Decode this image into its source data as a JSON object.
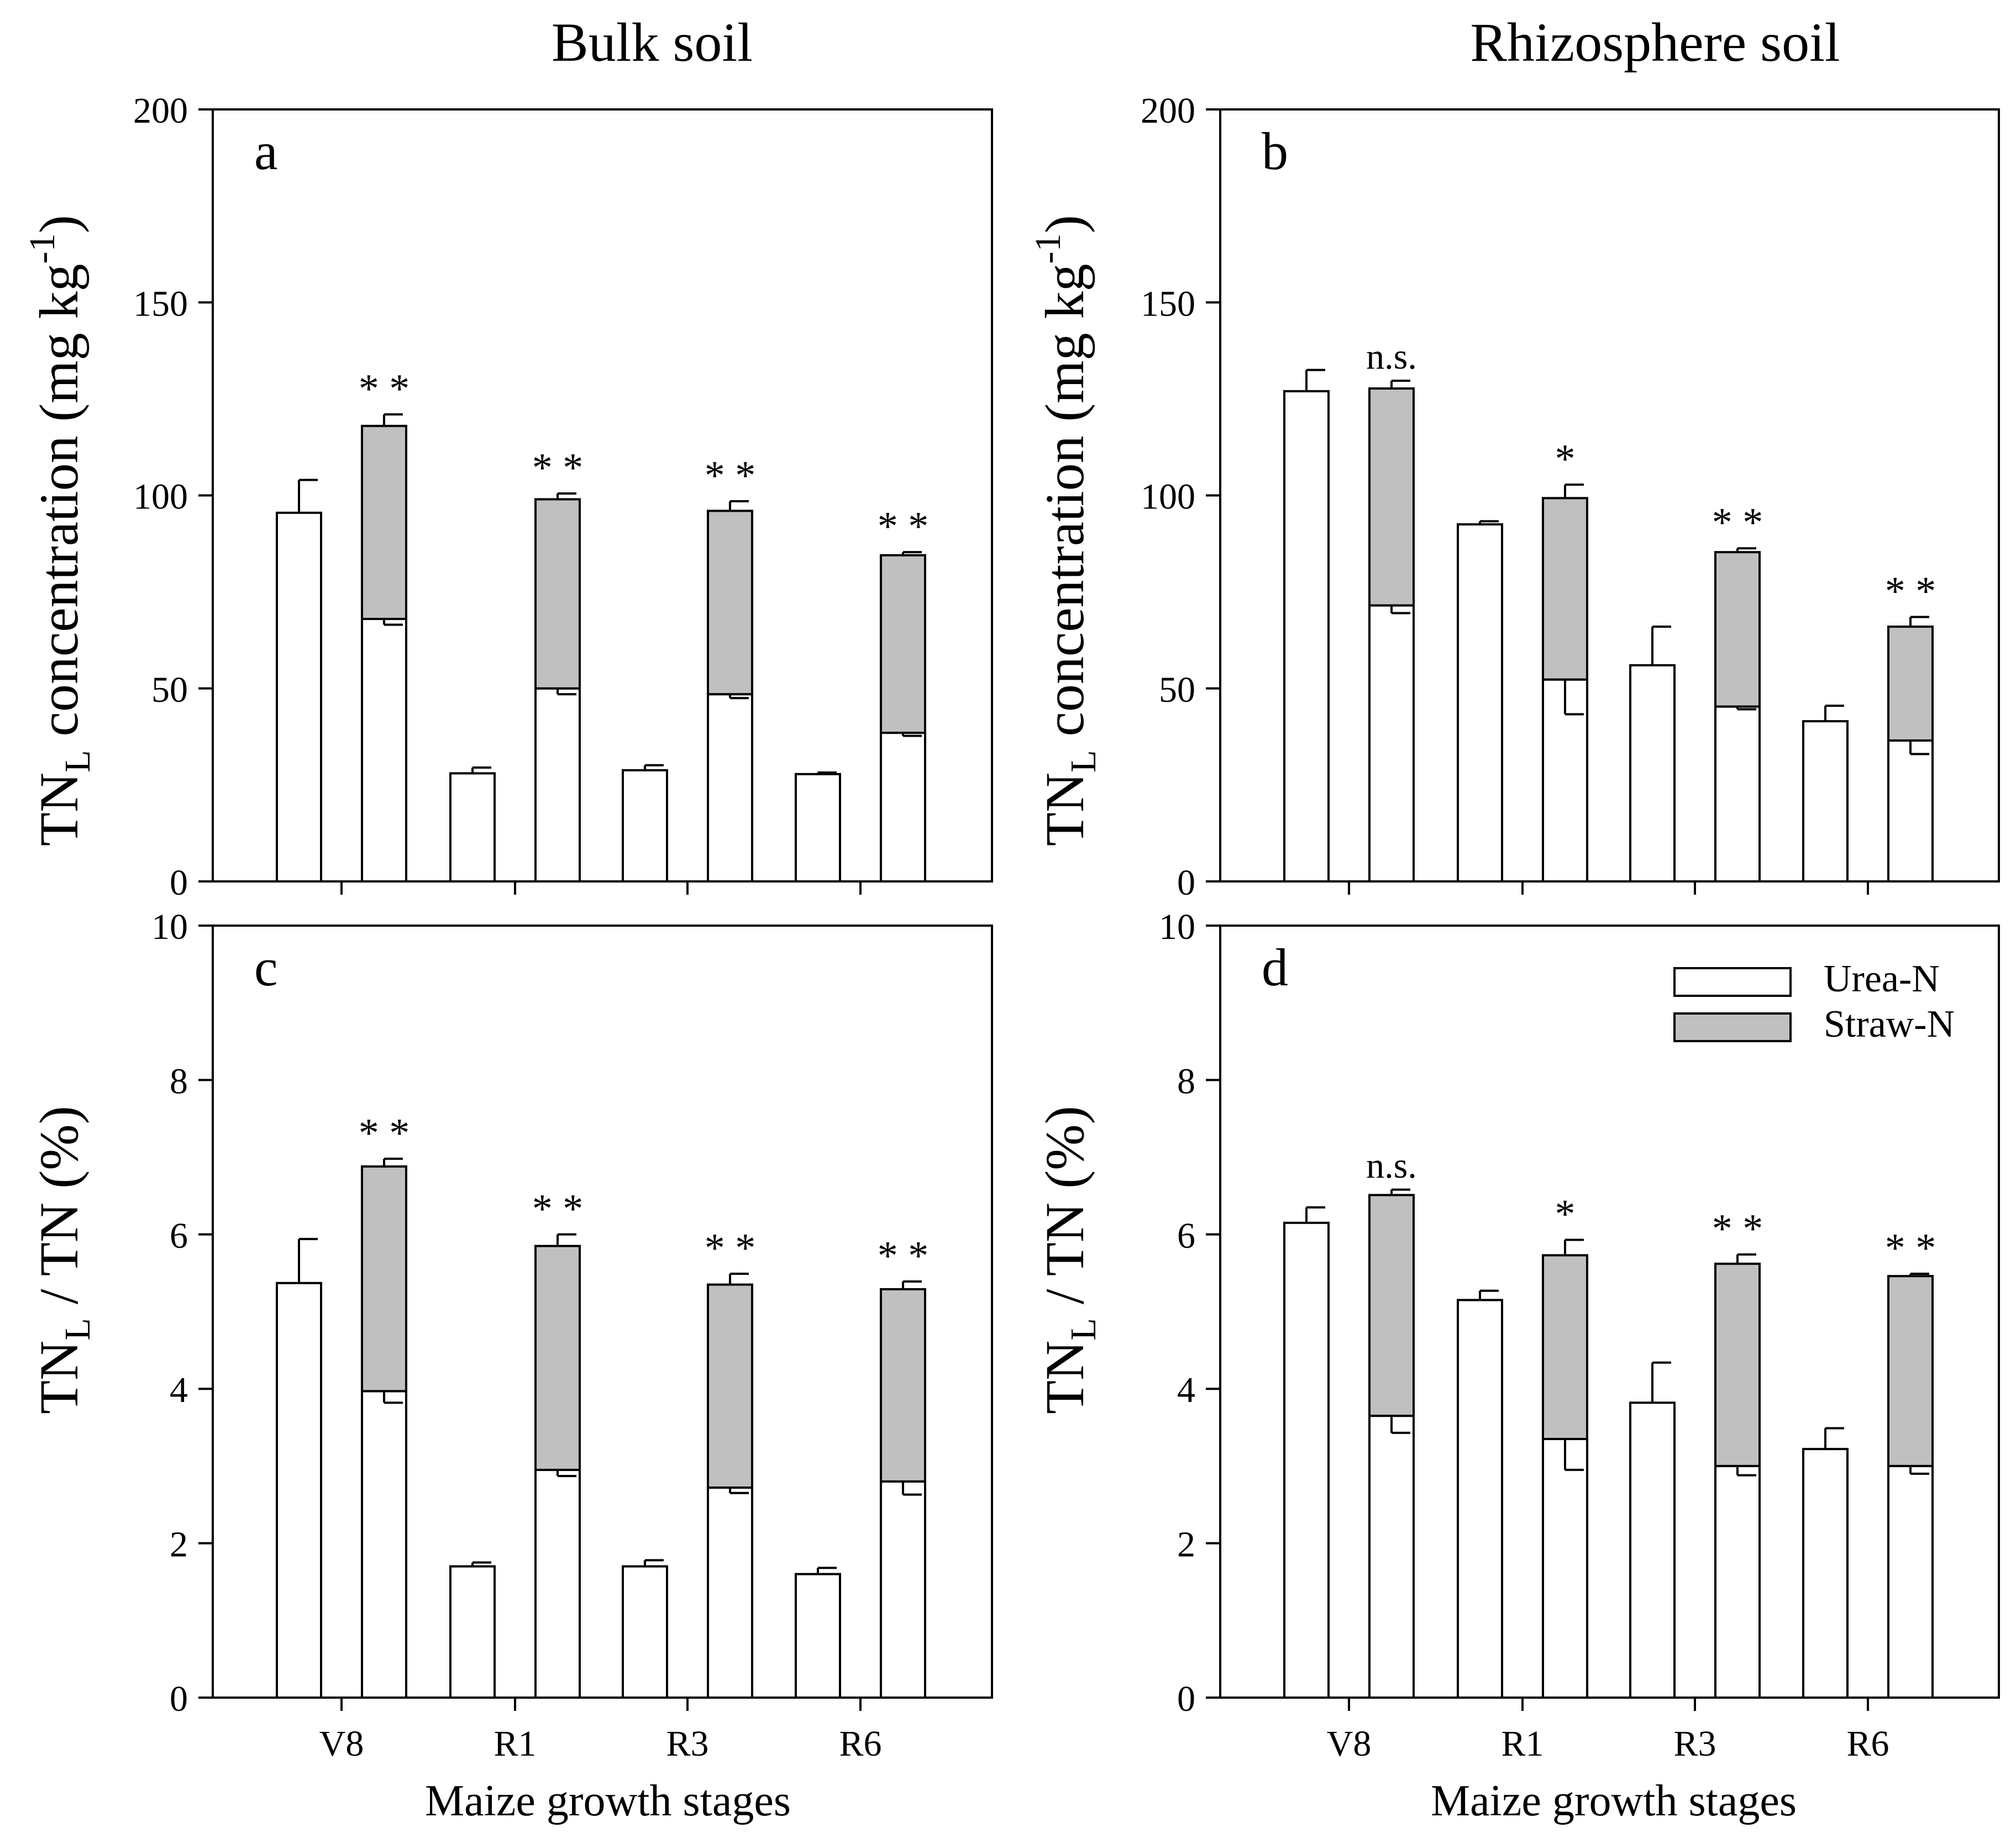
{
  "figure": {
    "col_titles": [
      "Bulk soil",
      "Rhizosphere soil"
    ],
    "xlabel": "Maize growth stages",
    "ylabel_conc": "TN_L concentration (mg kg^-1)",
    "ylabel_ratio": "TN_L / TN (%)",
    "colors": {
      "urea": "#ffffff",
      "straw": "#c0c0c0",
      "stroke": "#000000"
    }
  },
  "legend": {
    "position": "top-right of panel d",
    "entries": [
      {
        "label": "Urea-N",
        "color": "#ffffff"
      },
      {
        "label": "Straw-N",
        "color": "#c0c0c0"
      }
    ]
  },
  "chart_data": [
    {
      "panel": "a",
      "type": "bar",
      "stacked": true,
      "title": "Bulk soil",
      "categories": [
        "V8",
        "R1",
        "R3",
        "R6"
      ],
      "xlabel": "",
      "ylabel": "TN_L concentration (mg kg^-1)",
      "ylim": [
        0,
        200
      ],
      "yticks": [
        0,
        50,
        100,
        150,
        200
      ],
      "urea_only": [
        95.5,
        28,
        28.8,
        27.8
      ],
      "urea_only_err": [
        8.5,
        1.5,
        1.3,
        0.4
      ],
      "combined_urea": [
        68,
        50,
        48.5,
        38.5
      ],
      "combined_urea_err": [
        1.5,
        1.5,
        1,
        0.8
      ],
      "combined_straw": [
        50,
        49,
        47.5,
        46
      ],
      "combined_total_err": [
        3,
        1.5,
        2.5,
        0.8
      ],
      "significance": [
        "**",
        "**",
        "**",
        "**"
      ]
    },
    {
      "panel": "b",
      "type": "bar",
      "stacked": true,
      "title": "Rhizosphere soil",
      "categories": [
        "V8",
        "R1",
        "R3",
        "R6"
      ],
      "xlabel": "",
      "ylabel": "TN_L concentration (mg kg^-1)",
      "ylim": [
        0,
        200
      ],
      "yticks": [
        0,
        50,
        100,
        150,
        200
      ],
      "urea_only": [
        127,
        92.5,
        56,
        41.5
      ],
      "urea_only_err": [
        5.5,
        0.8,
        10,
        4
      ],
      "combined_urea": [
        71.5,
        52.3,
        45.3,
        36.5
      ],
      "combined_urea_err": [
        2,
        9,
        0.7,
        3.5
      ],
      "combined_straw": [
        56.2,
        47,
        40,
        29.5
      ],
      "combined_total_err": [
        2,
        3.5,
        1,
        2.5
      ],
      "significance": [
        "n.s.",
        "*",
        "**",
        "**"
      ]
    },
    {
      "panel": "c",
      "type": "bar",
      "stacked": true,
      "title": "",
      "categories": [
        "V8",
        "R1",
        "R3",
        "R6"
      ],
      "xlabel": "Maize growth stages",
      "ylabel": "TN_L / TN (%)",
      "ylim": [
        0,
        10
      ],
      "yticks": [
        0,
        2,
        4,
        6,
        8,
        10
      ],
      "urea_only": [
        5.37,
        1.7,
        1.7,
        1.6
      ],
      "urea_only_err": [
        0.57,
        0.05,
        0.08,
        0.08
      ],
      "combined_urea": [
        3.97,
        2.95,
        2.72,
        2.8
      ],
      "combined_urea_err": [
        0.15,
        0.08,
        0.07,
        0.17
      ],
      "combined_straw": [
        2.91,
        2.9,
        2.63,
        2.49
      ],
      "combined_total_err": [
        0.1,
        0.15,
        0.14,
        0.1
      ],
      "significance": [
        "**",
        "**",
        "**",
        "**"
      ]
    },
    {
      "panel": "d",
      "type": "bar",
      "stacked": true,
      "title": "",
      "categories": [
        "V8",
        "R1",
        "R3",
        "R6"
      ],
      "xlabel": "Maize growth stages",
      "ylabel": "TN_L / TN (%)",
      "ylim": [
        0,
        10
      ],
      "yticks": [
        0,
        2,
        4,
        6,
        8,
        10
      ],
      "urea_only": [
        6.15,
        5.15,
        3.82,
        3.22
      ],
      "urea_only_err": [
        0.2,
        0.12,
        0.52,
        0.27
      ],
      "combined_urea": [
        3.65,
        3.35,
        3.0,
        3.0
      ],
      "combined_urea_err": [
        0.22,
        0.4,
        0.12,
        0.1
      ],
      "combined_straw": [
        2.86,
        2.38,
        2.62,
        2.46
      ],
      "combined_total_err": [
        0.07,
        0.2,
        0.12,
        0.03
      ],
      "significance": [
        "n.s.",
        "*",
        "**",
        "**"
      ]
    }
  ]
}
